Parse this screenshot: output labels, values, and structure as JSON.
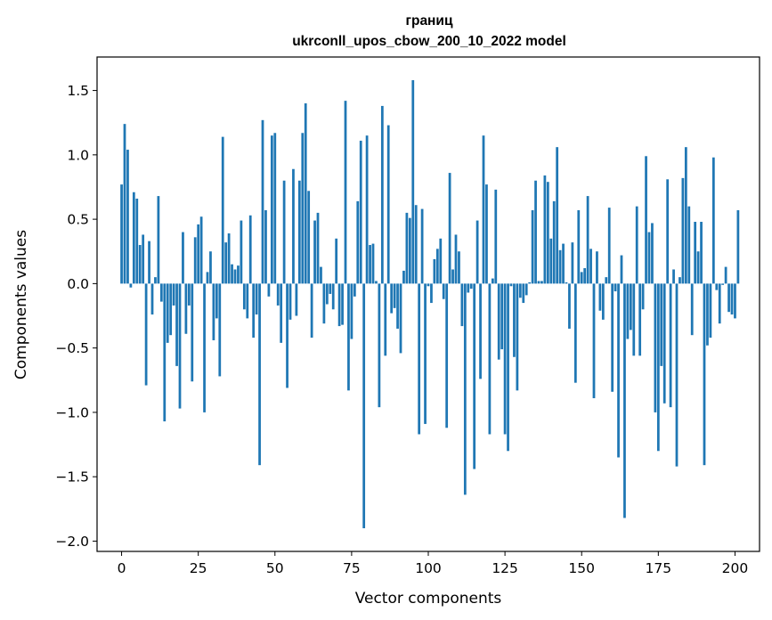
{
  "chart_data": {
    "type": "bar",
    "title": "границ",
    "subtitle": "ukrconll_upos_cbow_200_10_2022 model",
    "xlabel": "Vector components",
    "ylabel": "Components values",
    "xlim": [
      -8,
      208
    ],
    "ylim": [
      -2.08,
      1.76
    ],
    "xticks": [
      0,
      25,
      50,
      75,
      100,
      125,
      150,
      175,
      200
    ],
    "yticks": [
      -2.0,
      -1.5,
      -1.0,
      -0.5,
      0.0,
      0.5,
      1.0,
      1.5
    ],
    "ytick_labels": [
      "−2.0",
      "−1.5",
      "−1.0",
      "−0.5",
      "0.0",
      "0.5",
      "1.0",
      "1.5"
    ],
    "bar_color": "#1f77b4",
    "grid": false,
    "values": [
      0.77,
      1.24,
      1.04,
      -0.03,
      0.71,
      0.66,
      0.3,
      0.38,
      -0.79,
      0.33,
      -0.24,
      0.05,
      0.68,
      -0.14,
      -1.07,
      -0.46,
      -0.4,
      -0.17,
      -0.64,
      -0.97,
      0.4,
      -0.39,
      -0.17,
      -0.76,
      0.36,
      0.46,
      0.52,
      -1.0,
      0.09,
      0.25,
      -0.44,
      -0.27,
      -0.72,
      1.14,
      0.32,
      0.39,
      0.15,
      0.11,
      0.14,
      0.49,
      -0.2,
      -0.27,
      0.53,
      -0.42,
      -0.24,
      -1.41,
      1.27,
      0.57,
      -0.1,
      1.15,
      1.17,
      -0.17,
      -0.46,
      0.8,
      -0.81,
      -0.28,
      0.89,
      -0.25,
      0.8,
      1.17,
      1.4,
      0.72,
      -0.42,
      0.49,
      0.55,
      0.13,
      -0.31,
      -0.16,
      -0.08,
      -0.2,
      0.35,
      -0.33,
      -0.32,
      1.42,
      -0.83,
      -0.43,
      -0.1,
      0.64,
      1.11,
      -1.9,
      1.15,
      0.3,
      0.31,
      0.02,
      -0.96,
      1.38,
      -0.56,
      1.23,
      -0.23,
      -0.19,
      -0.35,
      -0.54,
      0.1,
      0.55,
      0.51,
      1.58,
      0.61,
      -1.17,
      0.58,
      -1.09,
      -0.02,
      -0.15,
      0.19,
      0.27,
      0.35,
      -0.12,
      -1.12,
      0.86,
      0.11,
      0.38,
      0.25,
      -0.33,
      -1.64,
      -0.07,
      -0.04,
      -1.44,
      0.49,
      -0.74,
      1.15,
      0.77,
      -1.17,
      0.04,
      0.73,
      -0.59,
      -0.51,
      -1.17,
      -1.3,
      -0.02,
      -0.57,
      -0.83,
      -0.11,
      -0.15,
      -0.09,
      0.01,
      0.57,
      0.8,
      0.02,
      0.02,
      0.84,
      0.79,
      0.35,
      0.64,
      1.06,
      0.26,
      0.31,
      0.01,
      -0.35,
      0.32,
      -0.77,
      0.57,
      0.09,
      0.12,
      0.68,
      0.27,
      -0.89,
      0.25,
      -0.21,
      -0.28,
      0.05,
      0.59,
      -0.84,
      -0.06,
      -1.35,
      0.22,
      -1.82,
      -0.43,
      -0.36,
      -0.56,
      0.6,
      -0.56,
      -0.2,
      0.99,
      0.4,
      0.47,
      -1.0,
      -1.3,
      -0.64,
      -0.93,
      0.81,
      -0.96,
      0.11,
      -1.42,
      0.05,
      0.82,
      1.06,
      0.6,
      -0.4,
      0.48,
      0.25,
      0.48,
      -1.41,
      -0.48,
      -0.42,
      0.98,
      -0.05,
      -0.31,
      -0.01,
      0.13,
      -0.22,
      -0.24,
      -0.27,
      0.57
    ]
  }
}
